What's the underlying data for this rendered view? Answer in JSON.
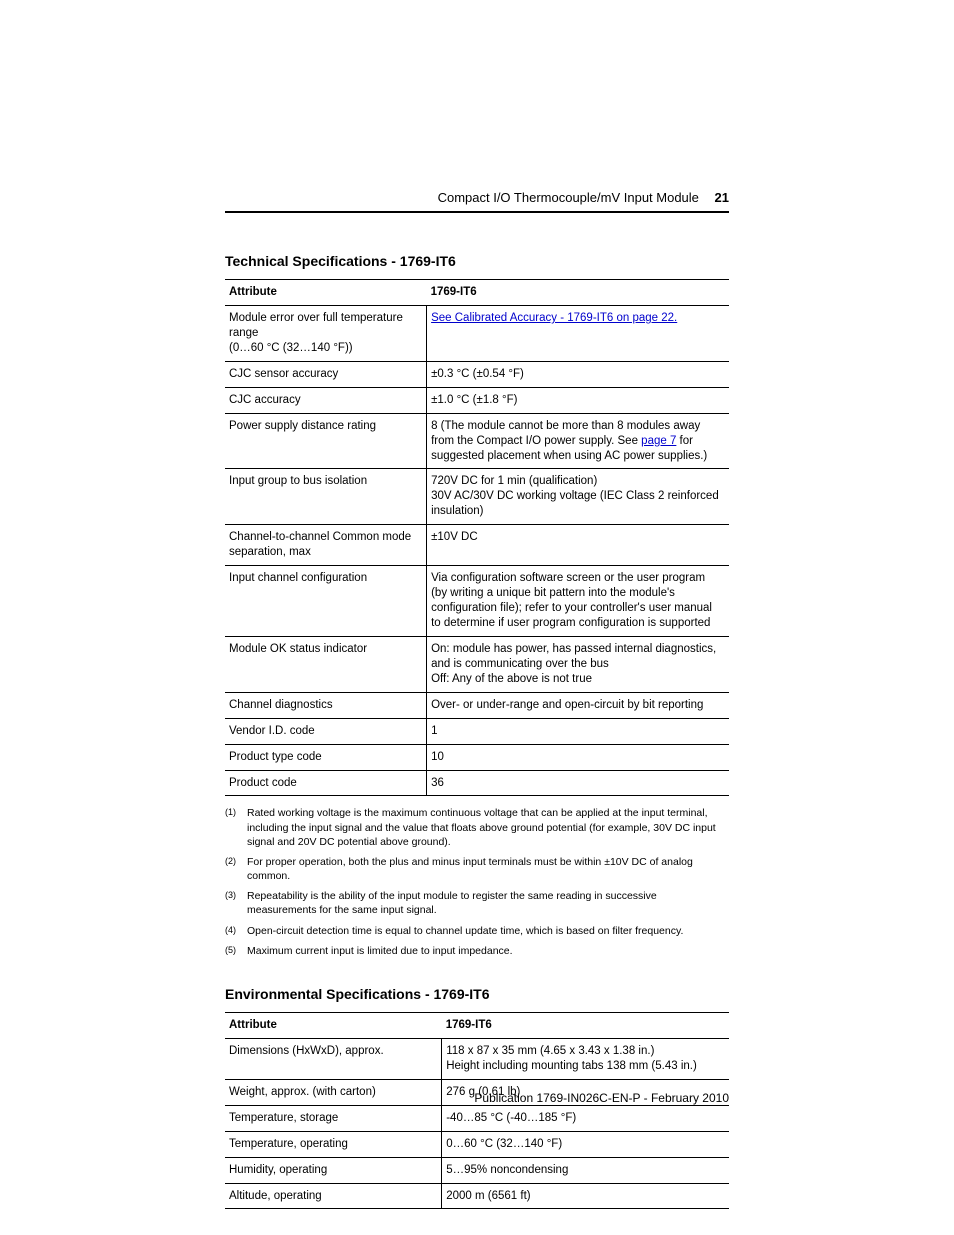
{
  "header": {
    "title": "Compact I/O Thermocouple/mV Input Module",
    "page_number": "21"
  },
  "tech_spec": {
    "title": "Technical Specifications - 1769-IT6",
    "col_headers": [
      "Attribute",
      "1769-IT6"
    ],
    "rows": [
      {
        "attr": "Module error over full temperature range\n(0…60 °C (32…140 °F))",
        "val_link": "See Calibrated Accuracy - 1769-IT6 on page 22.",
        "val_plain": ""
      },
      {
        "attr": "CJC sensor accuracy",
        "val_plain": "±0.3 °C (±0.54 °F)"
      },
      {
        "attr": "CJC accuracy",
        "val_plain": "±1.0 °C (±1.8 °F)"
      },
      {
        "attr": "Power supply distance rating",
        "val_before": "8 (The module cannot be more than 8 modules away from the Compact I/O power supply. See ",
        "val_link": "page 7",
        "val_after": " for suggested placement when using AC power supplies.)"
      },
      {
        "attr": "Input group to bus isolation",
        "val_plain": "720V DC for 1 min (qualification)\n30V AC/30V DC working voltage (IEC Class 2 reinforced insulation)"
      },
      {
        "attr": "Channel-to-channel Common mode separation, max",
        "val_plain": "±10V DC"
      },
      {
        "attr": "Input channel configuration",
        "val_plain": "Via configuration software screen or the user program (by writing a unique bit pattern into the module's configuration file); refer to your controller's user manual to determine if user program configuration is supported"
      },
      {
        "attr": "Module OK status indicator",
        "val_plain": "On: module has power, has passed internal diagnostics, and is communicating over the bus\nOff: Any of the above is not true"
      },
      {
        "attr": "Channel diagnostics",
        "val_plain": "Over- or under-range and open-circuit by bit reporting"
      },
      {
        "attr": "Vendor I.D. code",
        "val_plain": "1"
      },
      {
        "attr": "Product type code",
        "val_plain": "10"
      },
      {
        "attr": "Product code",
        "val_plain": "36"
      }
    ]
  },
  "footnotes": [
    {
      "num": "(1)",
      "text": "Rated working voltage is the maximum continuous voltage that can be applied at the input terminal, including the input signal and the value that floats above ground potential (for example, 30V DC input signal and 20V DC potential above ground)."
    },
    {
      "num": "(2)",
      "text": "For proper operation, both the plus and minus input terminals must be within ±10V DC of analog common."
    },
    {
      "num": "(3)",
      "text": "Repeatability is the ability of the input module to register the same reading in successive measurements for the same input signal."
    },
    {
      "num": "(4)",
      "text": "Open-circuit detection time is equal to channel update time, which is based on filter frequency."
    },
    {
      "num": "(5)",
      "text": "Maximum current input is limited due to input impedance."
    }
  ],
  "env_spec": {
    "title": "Environmental Specifications - 1769-IT6",
    "col_headers": [
      "Attribute",
      "1769-IT6"
    ],
    "rows": [
      {
        "attr": "Dimensions (HxWxD), approx.",
        "val_plain": "118 x 87 x 35 mm (4.65 x 3.43 x 1.38 in.)\nHeight including mounting tabs 138 mm (5.43 in.)"
      },
      {
        "attr": "Weight, approx. (with carton)",
        "val_plain": "276 g (0.61 lb)"
      },
      {
        "attr": "Temperature, storage",
        "val_plain": "-40…85 °C (-40…185 °F)"
      },
      {
        "attr": "Temperature, operating",
        "val_plain": "0…60 °C (32…140 °F)"
      },
      {
        "attr": "Humidity, operating",
        "val_plain": "5…95% noncondensing"
      },
      {
        "attr": "Altitude, operating",
        "val_plain": "2000 m (6561 ft)"
      }
    ]
  },
  "footer": {
    "text": "Publication 1769-IN026C-EN-P - February 2010"
  },
  "style": {
    "link_color": "#0000cc",
    "text_color": "#000000",
    "background_color": "#ffffff"
  }
}
